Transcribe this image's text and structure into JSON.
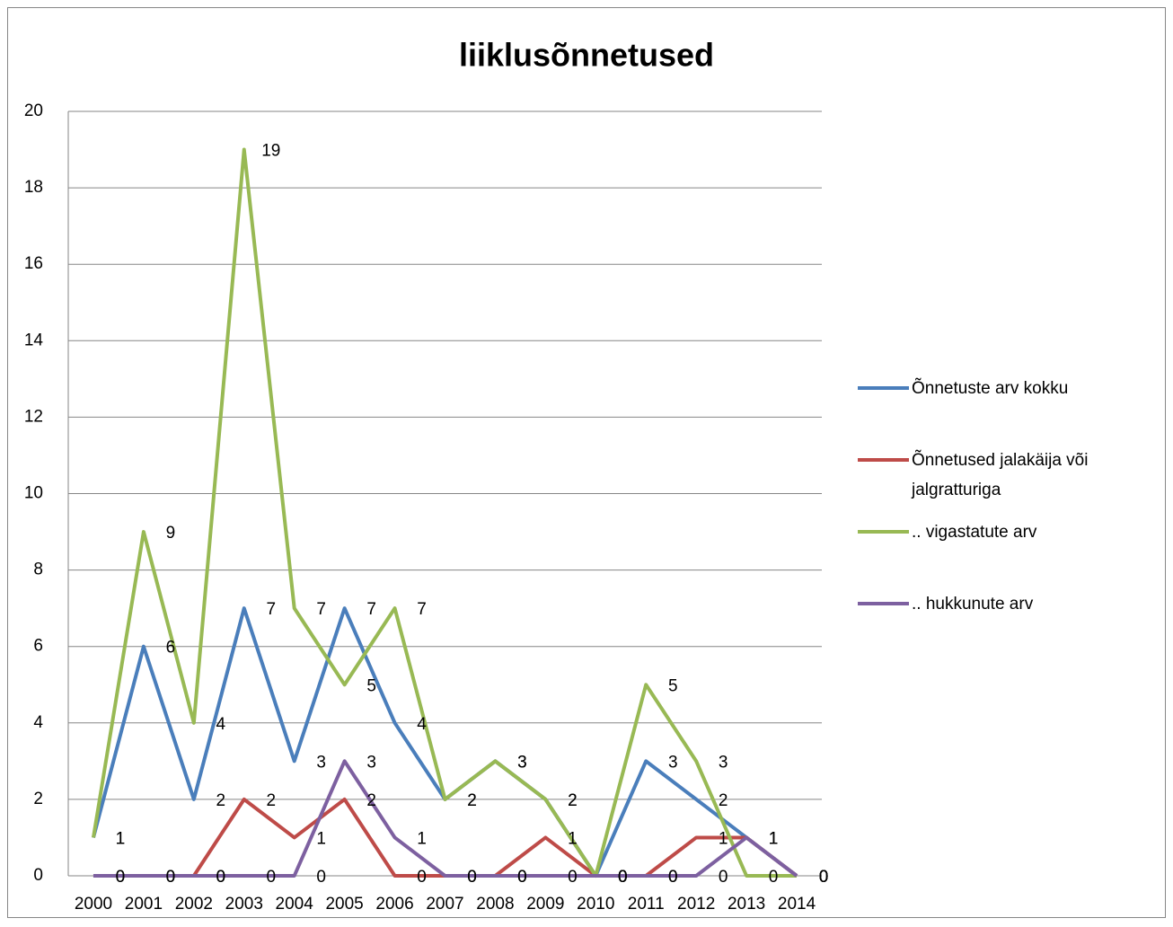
{
  "chart_data": {
    "type": "line",
    "title": "liiklusõnnetused",
    "categories": [
      "2000",
      "2001",
      "2002",
      "2003",
      "2004",
      "2005",
      "2006",
      "2007",
      "2008",
      "2009",
      "2010",
      "2011",
      "2012",
      "2013",
      "2014"
    ],
    "series": [
      {
        "name": "Õnnetuste arv kokku",
        "color": "#4a7ebb",
        "values": [
          1,
          6,
          2,
          7,
          3,
          7,
          4,
          2,
          3,
          2,
          0,
          3,
          2,
          1,
          0
        ]
      },
      {
        "name": "Õnnetused jalakäija või jalgratturiga",
        "color": "#be4b48",
        "values": [
          0,
          0,
          0,
          2,
          1,
          2,
          0,
          0,
          0,
          1,
          0,
          0,
          1,
          1,
          0
        ]
      },
      {
        "name": ".. vigastatute arv",
        "color": "#98b954",
        "values": [
          1,
          9,
          4,
          19,
          7,
          5,
          7,
          2,
          3,
          2,
          0,
          5,
          3,
          0,
          0
        ]
      },
      {
        "name": ".. hukkunute arv",
        "color": "#7d60a0",
        "values": [
          0,
          0,
          0,
          0,
          0,
          3,
          1,
          0,
          0,
          0,
          0,
          0,
          0,
          1,
          0
        ]
      }
    ],
    "ylim": [
      0,
      20
    ],
    "yticks": [
      0,
      2,
      4,
      6,
      8,
      10,
      12,
      14,
      16,
      18,
      20
    ],
    "grid": true,
    "legend": "right",
    "data_labels": true
  }
}
